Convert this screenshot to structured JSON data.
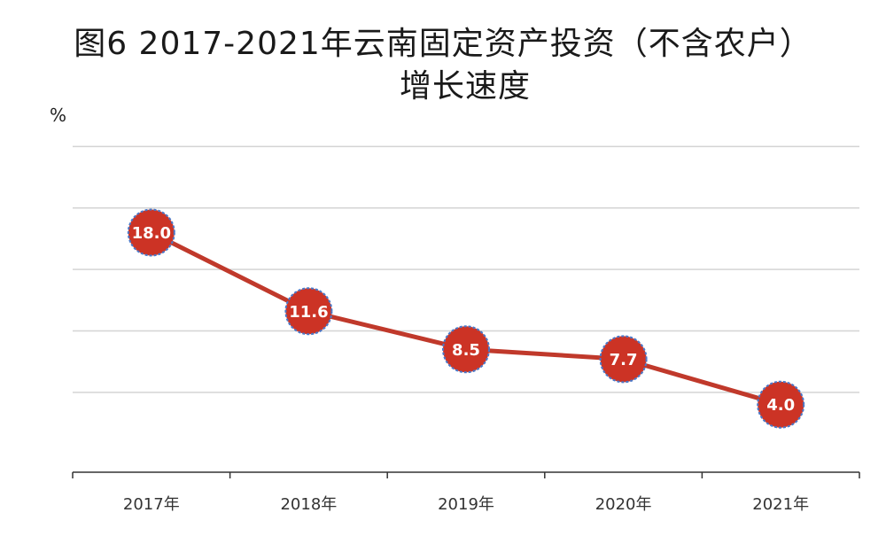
{
  "chart_data": {
    "type": "line",
    "title": "图6  2017-2021年云南固定资产投资（不含农户）",
    "subtitle": "增长速度",
    "unit": "%",
    "categories": [
      "2017年",
      "2018年",
      "2019年",
      "2020年",
      "2021年"
    ],
    "series": [
      {
        "values": [
          18.0,
          11.6,
          8.5,
          7.7,
          4.0
        ],
        "labels": [
          "18.0",
          "11.6",
          "8.5",
          "7.7",
          "4.0"
        ]
      }
    ],
    "ylim": [
      -1.5,
      30
    ],
    "grid": true,
    "colors": {
      "line": "#c0392b",
      "marker_fill": "#cc3325",
      "marker_stroke": "#4a78c8",
      "grid": "#d4d4d4",
      "axis": "#333333"
    }
  }
}
